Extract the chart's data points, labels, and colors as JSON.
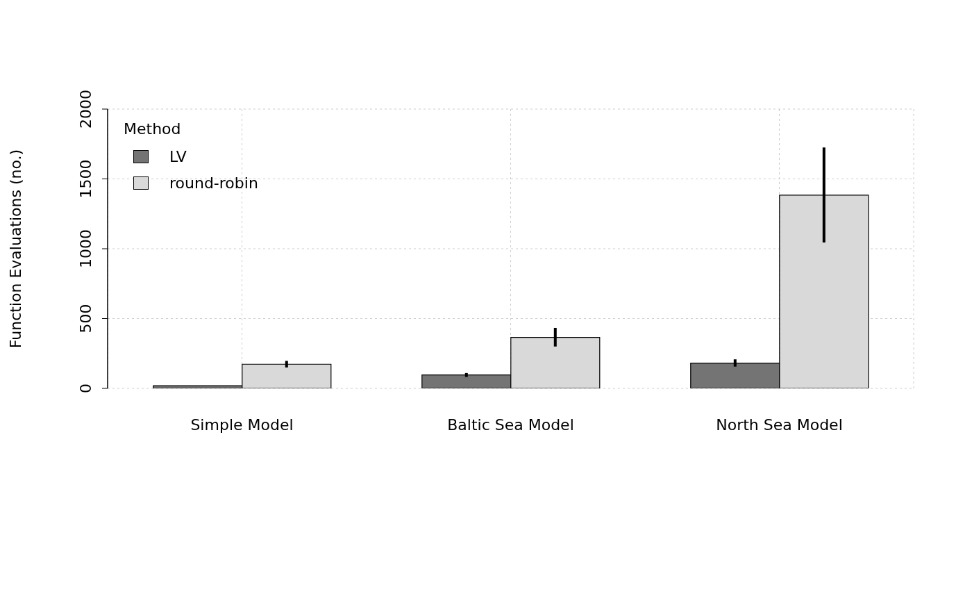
{
  "chart_data": {
    "type": "bar",
    "ylabel": "Function Evaluations (no.)",
    "legend_title": "Method",
    "categories": [
      "Simple Model",
      "Baltic Sea Model",
      "North Sea Model"
    ],
    "series": [
      {
        "name": "LV",
        "color": "#747474",
        "values": [
          19,
          96,
          181
        ],
        "errors": [
          null,
          [
            82,
            110
          ],
          [
            156,
            208
          ]
        ]
      },
      {
        "name": "round-robin",
        "color": "#d9d9d9",
        "values": [
          173,
          365,
          1384
        ],
        "errors": [
          [
            150,
            197
          ],
          [
            300,
            433
          ],
          [
            1045,
            1725
          ]
        ]
      }
    ],
    "ylim": [
      0,
      2000
    ],
    "yticks": [
      0,
      500,
      1000,
      1500,
      2000
    ],
    "grid": true,
    "legend": "top left"
  }
}
